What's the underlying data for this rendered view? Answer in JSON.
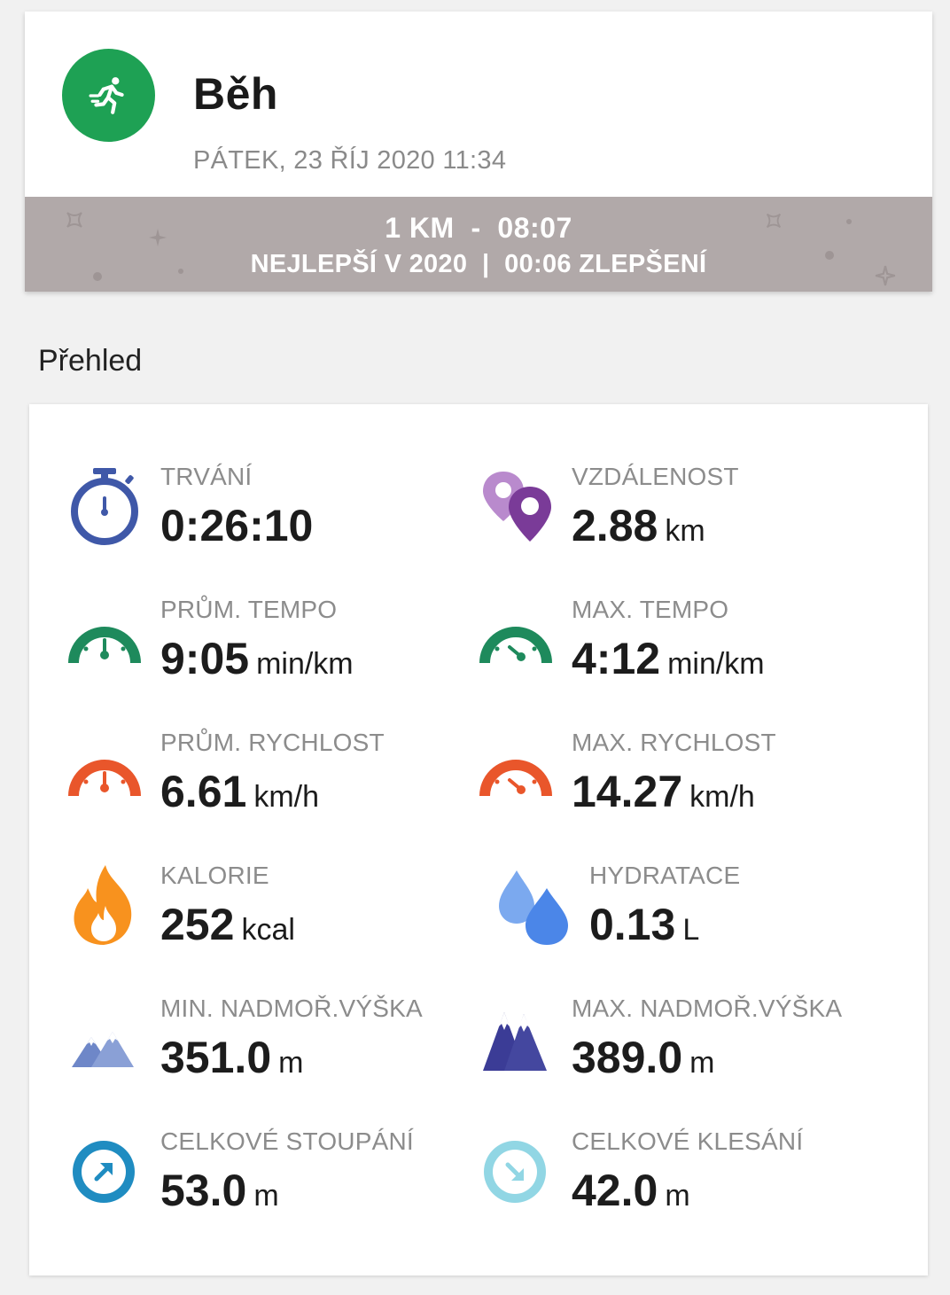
{
  "activity": {
    "title": "Běh",
    "date": "PÁTEK, 23 ŘÍJ 2020 11:34",
    "icon": "running-person-icon",
    "accent": "#1ea154"
  },
  "record": {
    "line1": "1 KM  -  08:07",
    "line2": "NEJLEPŠÍ V 2020  |  00:06 ZLEPŠENÍ",
    "background": "#b1a9a9"
  },
  "overview": {
    "title": "Přehled",
    "stats": [
      {
        "label": "TRVÁNÍ",
        "value": "0:26:10",
        "unit": "",
        "icon": "stopwatch-icon"
      },
      {
        "label": "VZDÁLENOST",
        "value": "2.88",
        "unit": "km",
        "icon": "location-pins-icon"
      },
      {
        "label": "PRŮM. TEMPO",
        "value": "9:05",
        "unit": "min/km",
        "icon": "avg-pace-gauge-icon"
      },
      {
        "label": "MAX. TEMPO",
        "value": "4:12",
        "unit": "min/km",
        "icon": "max-pace-gauge-icon"
      },
      {
        "label": "PRŮM. RYCHLOST",
        "value": "6.61",
        "unit": "km/h",
        "icon": "avg-speed-gauge-icon"
      },
      {
        "label": "MAX. RYCHLOST",
        "value": "14.27",
        "unit": "km/h",
        "icon": "max-speed-gauge-icon"
      },
      {
        "label": "KALORIE",
        "value": "252",
        "unit": "kcal",
        "icon": "flame-icon"
      },
      {
        "label": "HYDRATACE",
        "value": "0.13",
        "unit": "L",
        "icon": "water-drops-icon"
      },
      {
        "label": "MIN. NADMOŘ.VÝŠKA",
        "value": "351.0",
        "unit": "m",
        "icon": "min-altitude-mountains-icon"
      },
      {
        "label": "MAX. NADMOŘ.VÝŠKA",
        "value": "389.0",
        "unit": "m",
        "icon": "max-altitude-mountains-icon"
      },
      {
        "label": "CELKOVÉ STOUPÁNÍ",
        "value": "53.0",
        "unit": "m",
        "icon": "ascent-arrow-icon"
      },
      {
        "label": "CELKOVÉ KLESÁNÍ",
        "value": "42.0",
        "unit": "m",
        "icon": "descent-arrow-icon"
      }
    ]
  }
}
